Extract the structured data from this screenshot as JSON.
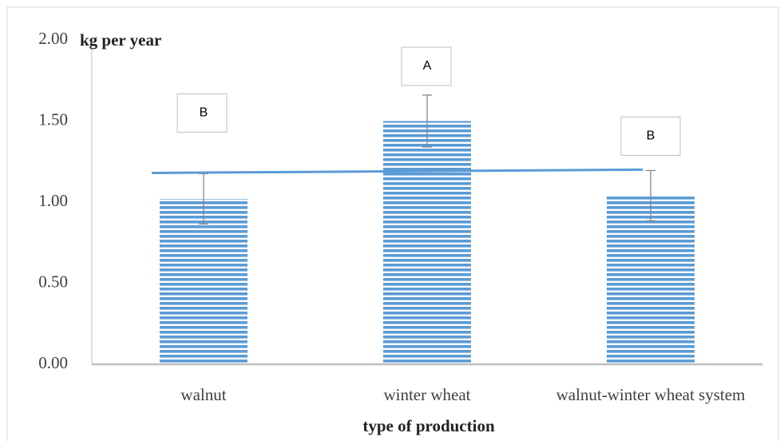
{
  "chart_data": {
    "type": "bar",
    "y_label": "kg per year",
    "x_label": "type of production",
    "categories": [
      "walnut",
      "winter wheat",
      "walnut-winter wheat system"
    ],
    "values": [
      1.02,
      1.5,
      1.04
    ],
    "errors": [
      0.155,
      0.16,
      0.155
    ],
    "annotations": [
      "B",
      "A",
      "B"
    ],
    "trendline": [
      1.18,
      1.2
    ],
    "color": "#5b9bd5",
    "trend_color": "#5b9bd5",
    "ylim": [
      0,
      2
    ],
    "yticks": [
      {
        "value": 0,
        "label": "0.00"
      },
      {
        "value": 0.5,
        "label": "0.50"
      },
      {
        "value": 1,
        "label": "1.00"
      },
      {
        "value": 1.5,
        "label": "1.50"
      },
      {
        "value": 2,
        "label": "2.00"
      }
    ],
    "grid": false
  }
}
